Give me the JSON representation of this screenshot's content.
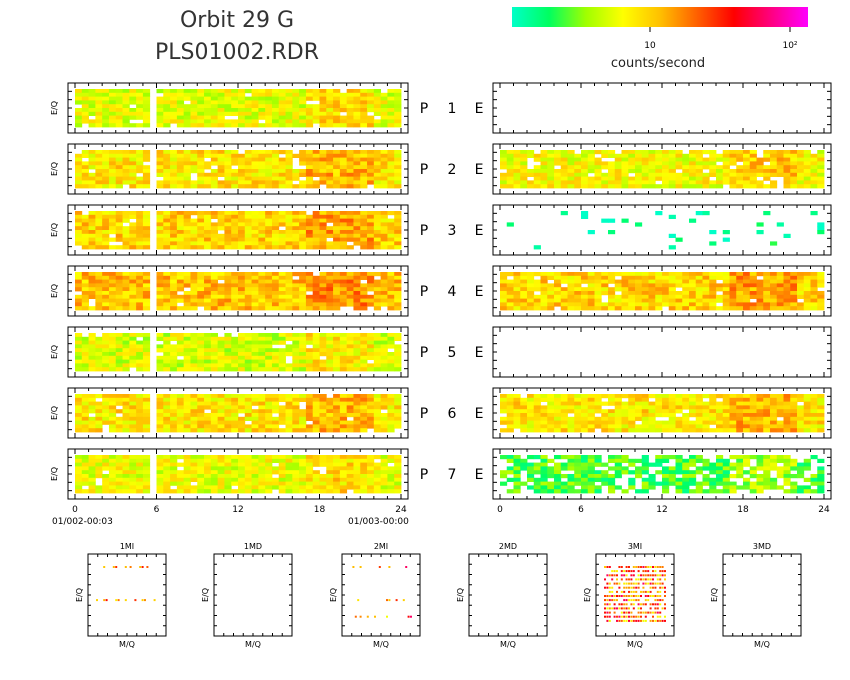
{
  "header": {
    "title_line1": "Orbit 29 G",
    "title_line2": "PLS01002.RDR"
  },
  "colorbar": {
    "tick_labels": [
      "10",
      "10²"
    ],
    "unit_label": "counts/second",
    "gradient_stops": [
      "#00ffc8",
      "#00ff60",
      "#a0ff00",
      "#ffff00",
      "#ffc000",
      "#ff6000",
      "#ff0000",
      "#ff0080",
      "#ff00ff"
    ]
  },
  "colors": {
    "empty": "#ffffff",
    "frame": "#000000"
  },
  "chart_data": [
    {
      "type": "heatmap",
      "panel_set": "P",
      "ylabel": "E/Q",
      "xlim": [
        0,
        24
      ],
      "xticks": [
        "0",
        "6",
        "12",
        "18",
        "24"
      ],
      "x_start_label": "01/002-00:03",
      "x_end_label": "01/003-00:00",
      "rows": [
        {
          "label": "P",
          "number": "1",
          "level": 0.35,
          "coverage": 1.0,
          "gap_hours": [
            5.8
          ]
        },
        {
          "label": "P",
          "number": "2",
          "level": 0.42,
          "coverage": 1.0,
          "gap_hours": [
            5.8
          ]
        },
        {
          "label": "P",
          "number": "3",
          "level": 0.45,
          "coverage": 1.0,
          "gap_hours": [
            5.8
          ]
        },
        {
          "label": "P",
          "number": "4",
          "level": 0.48,
          "coverage": 1.0,
          "gap_hours": [
            5.8
          ]
        },
        {
          "label": "P",
          "number": "5",
          "level": 0.33,
          "coverage": 1.0,
          "gap_hours": [
            5.8
          ]
        },
        {
          "label": "P",
          "number": "6",
          "level": 0.42,
          "coverage": 1.0,
          "gap_hours": [
            5.8
          ]
        },
        {
          "label": "P",
          "number": "7",
          "level": 0.36,
          "coverage": 1.0,
          "gap_hours": [
            5.8
          ]
        }
      ]
    },
    {
      "type": "heatmap",
      "panel_set": "E",
      "xlim": [
        0,
        24
      ],
      "xticks": [
        "0",
        "6",
        "12",
        "18",
        "24"
      ],
      "rows": [
        {
          "label": "E",
          "level": 0,
          "coverage": 0.0,
          "gap_hours": []
        },
        {
          "label": "E",
          "level": 0.38,
          "coverage": 0.95,
          "gap_hours": []
        },
        {
          "label": "E",
          "level": 0.02,
          "coverage": 0.06,
          "gap_hours": []
        },
        {
          "label": "E",
          "level": 0.45,
          "coverage": 1.0,
          "gap_hours": []
        },
        {
          "label": "E",
          "level": 0,
          "coverage": 0.0,
          "gap_hours": []
        },
        {
          "label": "E",
          "level": 0.42,
          "coverage": 1.0,
          "gap_hours": []
        },
        {
          "label": "E",
          "level": 0.18,
          "coverage": 0.75,
          "gap_hours": []
        }
      ]
    },
    {
      "type": "heatmap",
      "panel_set": "mass",
      "xlabel": "M/Q",
      "ylabel": "E/Q",
      "panels": [
        {
          "title": "1MI",
          "has_data": true
        },
        {
          "title": "1MD",
          "has_data": false
        },
        {
          "title": "2MI",
          "has_data": true
        },
        {
          "title": "2MD",
          "has_data": false
        },
        {
          "title": "3MI",
          "has_data": true
        },
        {
          "title": "3MD",
          "has_data": false
        }
      ]
    }
  ]
}
